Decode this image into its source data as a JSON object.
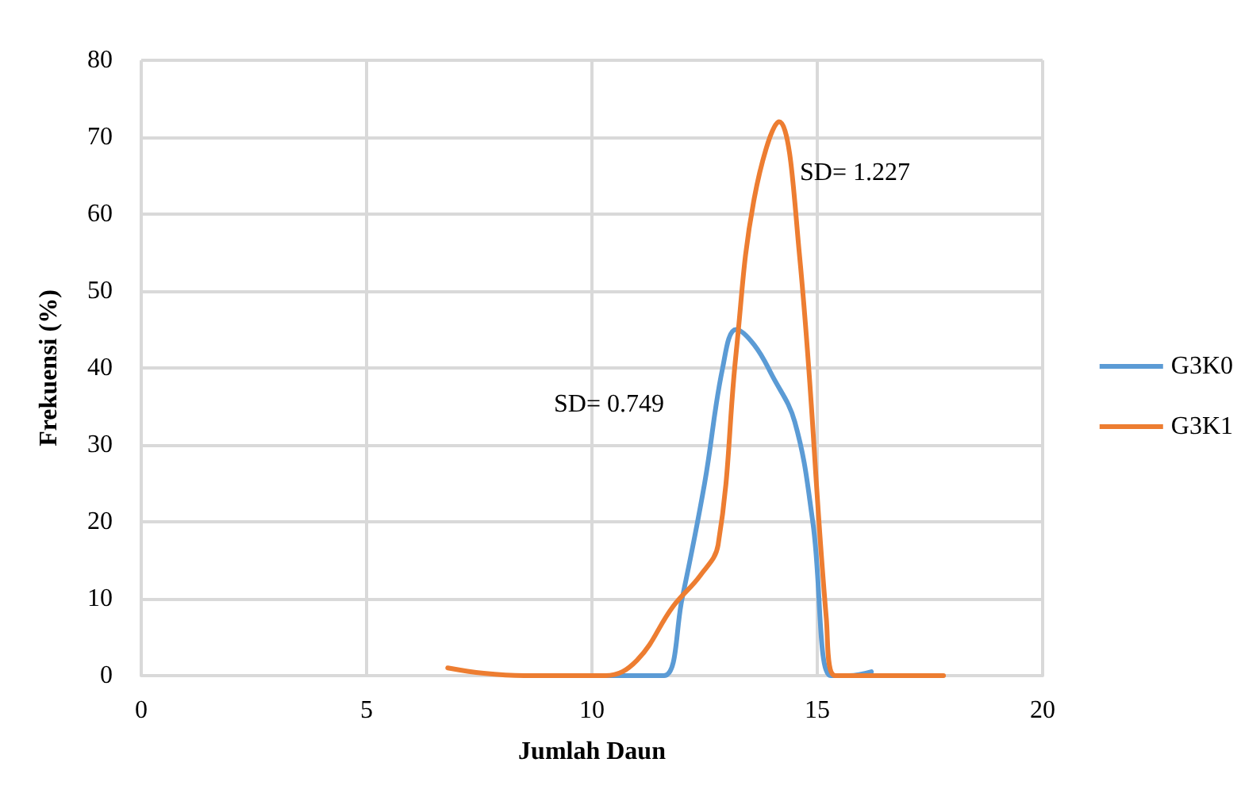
{
  "chart_data": {
    "type": "line",
    "xlabel": "Jumlah Daun",
    "ylabel": "Frekuensi (%)",
    "xlim": [
      0,
      20
    ],
    "xticks": [
      0,
      5,
      10,
      15,
      20
    ],
    "ylim": [
      0,
      80
    ],
    "yticks": [
      0,
      10,
      20,
      30,
      40,
      50,
      60,
      70,
      80
    ],
    "grid": true,
    "legend": "right",
    "marker": "none",
    "line_style": "solid",
    "series": [
      {
        "name": "G3K0",
        "color": "#5b9bd5",
        "x": [
          9.3,
          10.3,
          11.0,
          11.6,
          12.0,
          12.5,
          12.9,
          13.2,
          13.6,
          14.0,
          14.5,
          14.9,
          15.3,
          15.7,
          16.2
        ],
        "values": [
          0,
          0,
          0,
          0,
          10,
          25,
          40,
          45,
          43,
          39,
          33,
          20,
          0,
          0,
          0.5
        ]
      },
      {
        "name": "G3K1",
        "color": "#ed7d31",
        "x": [
          6.8,
          7.6,
          8.5,
          9.5,
          10.3,
          11.0,
          11.8,
          12.4,
          12.8,
          13.2,
          13.6,
          14.15,
          14.6,
          15.2,
          15.4,
          16.0,
          16.5,
          17.8
        ],
        "values": [
          1,
          0.3,
          0,
          0,
          0,
          2,
          9,
          13,
          17,
          42,
          62,
          72,
          55,
          7.5,
          0,
          0,
          0,
          0
        ]
      }
    ],
    "annotations": [
      "SD= 0.749",
      "SD= 1.227"
    ]
  }
}
